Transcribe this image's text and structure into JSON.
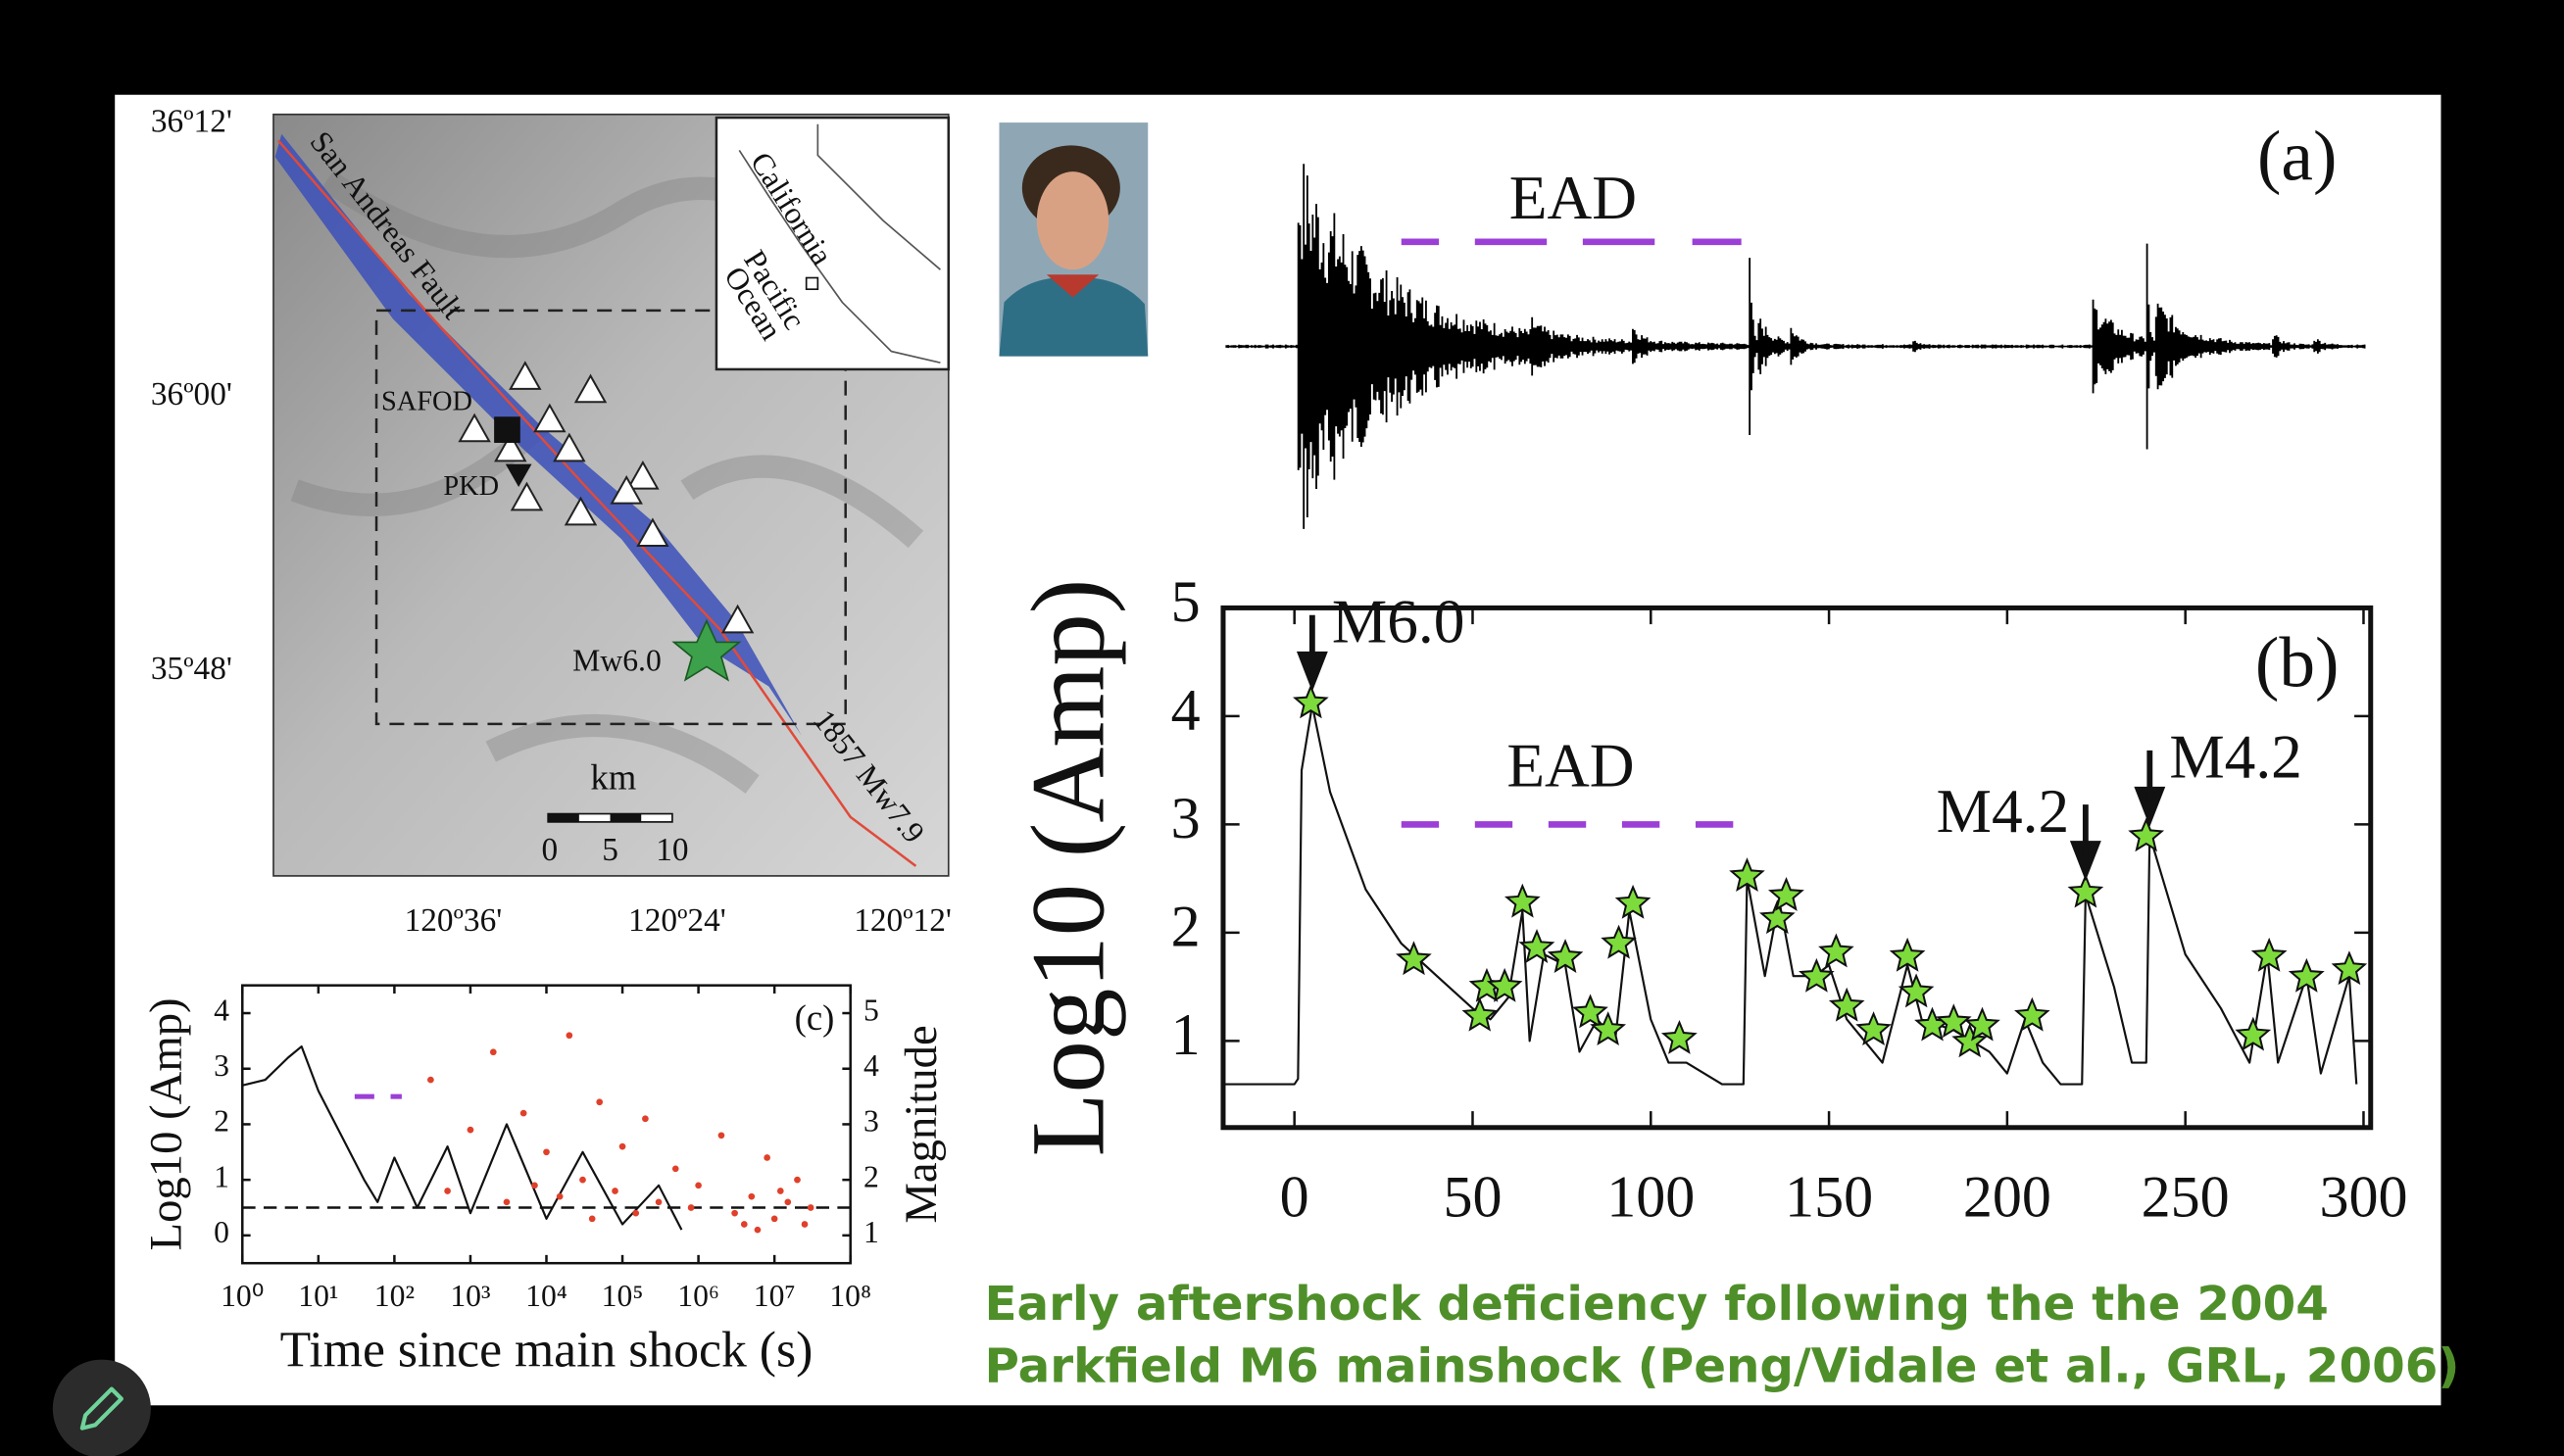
{
  "map": {
    "lat_labels": [
      "36º12'",
      "36º00'",
      "35º48'"
    ],
    "lon_labels": [
      "120º36'",
      "120º24'",
      "120º12'"
    ],
    "fault_label": "San Andreas Fault",
    "station_labels": [
      "SAFOD",
      "PKD"
    ],
    "event_labels": [
      "Mw6.0",
      "1857 Mw7.9"
    ],
    "scale_unit": "km",
    "scale_ticks": [
      "0",
      "5",
      "10"
    ],
    "inset_labels": [
      "California",
      "Pacific",
      "Ocean"
    ]
  },
  "panel_a": {
    "label": "(a)",
    "ead": "EAD"
  },
  "chart_data": [
    {
      "type": "line",
      "label": "(b)",
      "ylabel": "Log10 (Amp)",
      "xlim": [
        -20,
        302
      ],
      "ylim": [
        0.2,
        5
      ],
      "xticks": [
        0,
        50,
        100,
        150,
        200,
        250,
        300
      ],
      "yticks": [
        1,
        2,
        3,
        4,
        5
      ],
      "series": [
        {
          "color": "#111111",
          "x": [
            -20,
            0,
            1,
            2,
            5,
            10,
            20,
            30,
            40,
            50,
            55,
            60,
            64,
            66,
            70,
            76,
            80,
            85,
            90,
            94,
            100,
            105,
            110,
            120,
            126,
            127,
            132,
            136,
            140,
            146,
            150,
            155,
            160,
            165,
            172,
            176,
            185,
            195,
            200,
            205,
            210,
            215,
            221,
            222,
            230,
            235,
            239,
            240,
            250,
            260,
            268,
            273,
            276,
            284,
            288,
            296,
            298
          ],
          "values": [
            0.6,
            0.6,
            0.65,
            3.5,
            4.1,
            3.3,
            2.4,
            1.9,
            1.6,
            1.3,
            1.2,
            1.4,
            2.2,
            1.0,
            1.8,
            1.7,
            0.9,
            1.2,
            1.0,
            2.2,
            1.2,
            0.8,
            0.8,
            0.6,
            0.6,
            2.5,
            1.6,
            2.3,
            1.6,
            1.6,
            1.7,
            1.2,
            1.0,
            0.8,
            1.7,
            1.2,
            1.1,
            0.9,
            0.7,
            1.2,
            0.8,
            0.6,
            0.6,
            2.35,
            1.5,
            0.8,
            0.8,
            2.9,
            1.8,
            1.3,
            0.8,
            1.8,
            0.8,
            1.6,
            0.7,
            1.6,
            0.6
          ]
        },
        {
          "marker": "star",
          "color": "#7ddc3c",
          "x": [
            4.6,
            33.5,
            52,
            54,
            59,
            64,
            68,
            76,
            83,
            88,
            91,
            95,
            108,
            127,
            135.5,
            138,
            146.5,
            152,
            155,
            162.5,
            172,
            174.5,
            179,
            185,
            189.5,
            193,
            207,
            222,
            239,
            269,
            273.5,
            284,
            296
          ],
          "values": [
            4.12,
            1.75,
            1.23,
            1.5,
            1.5,
            2.28,
            1.86,
            1.77,
            1.26,
            1.1,
            1.9,
            2.27,
            1.02,
            2.52,
            2.13,
            2.34,
            1.59,
            1.82,
            1.32,
            1.1,
            1.78,
            1.45,
            1.14,
            1.17,
            0.99,
            1.14,
            1.23,
            2.37,
            2.89,
            1.05,
            1.78,
            1.59,
            1.66
          ]
        }
      ],
      "annotations": [
        {
          "text": "M6.0",
          "x": 5,
          "y": 4.3
        },
        {
          "text": "M4.2",
          "x": 222,
          "y": 2.55
        },
        {
          "text": "M4.2",
          "x": 240,
          "y": 3.05
        }
      ],
      "ead": {
        "text": "EAD",
        "xrange": [
          30,
          125
        ],
        "y": 3,
        "color": "#9b3fd6"
      }
    },
    {
      "type": "line",
      "label": "(c)",
      "xlabel": "Time since main shock (s)",
      "ylabel": "Log10 (Amp)",
      "y2label": "Magnitude",
      "xscale": "log",
      "xlim": [
        1,
        100000000
      ],
      "xticks": [
        {
          "value": 1,
          "label": "10⁰"
        },
        {
          "value": 10,
          "label": "10¹"
        },
        {
          "value": 100,
          "label": "10²"
        },
        {
          "value": 1000,
          "label": "10³"
        },
        {
          "value": 10000,
          "label": "10⁴"
        },
        {
          "value": 100000,
          "label": "10⁵"
        },
        {
          "value": 1000000,
          "label": "10⁶"
        },
        {
          "value": 10000000,
          "label": "10⁷"
        },
        {
          "value": 100000000,
          "label": "10⁸"
        }
      ],
      "ylim": [
        -0.5,
        4.5
      ],
      "yticks": [
        0,
        1,
        2,
        3,
        4
      ],
      "y2lim": [
        0.5,
        5.5
      ],
      "y2ticks": [
        1,
        2,
        3,
        4,
        5
      ],
      "threshold": 0.5,
      "ead": {
        "xrange": [
          30,
          125
        ],
        "y": 2.5,
        "color": "#9b3fd6"
      },
      "series": [
        {
          "color": "#111111",
          "x": [
            1,
            2,
            4,
            6,
            10,
            20,
            40,
            60,
            100,
            200,
            500,
            1000,
            3000,
            10000,
            30000,
            100000,
            300000,
            600000
          ],
          "values": [
            2.7,
            2.8,
            3.2,
            3.4,
            2.6,
            1.8,
            1.0,
            0.6,
            1.4,
            0.5,
            1.6,
            0.4,
            2.0,
            0.3,
            1.5,
            0.2,
            0.9,
            0.1
          ]
        },
        {
          "marker": "dot",
          "color": "#e0402a",
          "axis": "y2",
          "x": [
            300,
            500,
            1000,
            2000,
            3000,
            5000,
            7000,
            10000,
            15000,
            20000,
            30000,
            40000,
            50000,
            80000,
            100000,
            150000,
            200000,
            300000,
            500000,
            800000,
            1000000,
            2000000,
            3000000,
            4000000,
            5000000,
            6000000,
            8000000,
            10000000,
            12000000,
            15000000,
            20000000,
            25000000,
            30000000
          ],
          "values": [
            3.8,
            1.8,
            2.9,
            4.3,
            1.6,
            3.2,
            1.9,
            2.5,
            1.7,
            4.6,
            2.0,
            1.3,
            3.4,
            1.8,
            2.6,
            1.4,
            3.1,
            1.6,
            2.2,
            1.5,
            1.9,
            2.8,
            1.4,
            1.2,
            1.7,
            1.1,
            2.4,
            1.3,
            1.8,
            1.6,
            2.0,
            1.2,
            1.5
          ]
        }
      ]
    }
  ],
  "caption": [
    "Early aftershock deficiency following the the 2004",
    "Parkfield M6 mainshock (Peng/Vidale et al., GRL, 2006)"
  ]
}
